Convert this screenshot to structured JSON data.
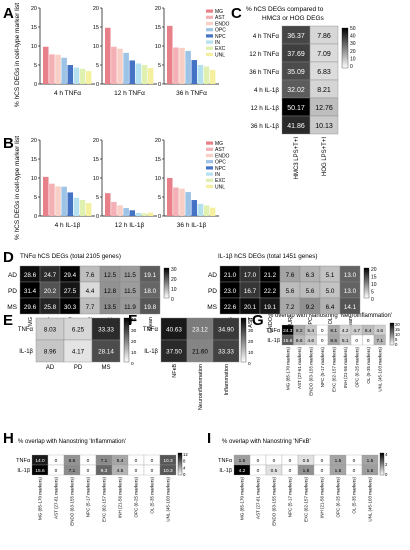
{
  "panels": {
    "A": {
      "letter": "A",
      "ylabel": "% hCS DEGs in cell-type marker list",
      "ylim": [
        0,
        20
      ],
      "ticks": [
        "0",
        "5",
        "10",
        "15",
        "20"
      ],
      "xlabels": [
        "4 h TNFα",
        "12 h TNFα",
        "36 h TNFα"
      ]
    },
    "B": {
      "letter": "B",
      "ylabel": "% hCS DEGs in cell-type marker list",
      "ylim": [
        0,
        20
      ],
      "ticks": [
        "0",
        "5",
        "10",
        "15",
        "20"
      ],
      "xlabels": [
        "4 h IL-1β",
        "12 h IL-1β",
        "36 h IL-1β"
      ]
    },
    "C": {
      "letter": "C",
      "title1": "% hCS DEGs compared to",
      "title2": "HMC3 or HOG DEGs",
      "cols": [
        "HMC3 LPS+T+I",
        "HOG LPS+T+I"
      ],
      "rows": [
        "4 h TNFα",
        "12 h TNFα",
        "36 h TNFα",
        "4 h IL-1β",
        "12 h IL-1β",
        "36 h IL-1β"
      ],
      "cells": [
        [
          "36.37",
          "7.86"
        ],
        [
          "37.69",
          "7.09"
        ],
        [
          "35.09",
          "6.83"
        ],
        [
          "32.02",
          "8.21"
        ],
        [
          "50.17",
          "12.76"
        ],
        [
          "41.86",
          "10.13"
        ]
      ],
      "scale": [
        "50",
        "40",
        "30",
        "20",
        "10",
        "0"
      ]
    },
    "D": {
      "letter": "D",
      "title_left": "TNFα hCS DEGs (total 2105 genes)",
      "title_right": "IL-1β hCS DEGs (total 1451 genes)",
      "rows": [
        "AD",
        "PD",
        "MS"
      ],
      "cols": [
        "MG",
        "AST",
        "ENDO",
        "NEUR",
        "OPC",
        "OL",
        "Mean"
      ],
      "left_cells": [
        [
          "28.6",
          "24.7",
          "29.4",
          "7.6",
          "12.5",
          "11.5",
          "19.1"
        ],
        [
          "31.4",
          "20.2",
          "27.5",
          "4.4",
          "12.8",
          "11.5",
          "18.0"
        ],
        [
          "29.6",
          "25.8",
          "30.3",
          "7.7",
          "13.5",
          "11.9",
          "19.8"
        ]
      ],
      "right_cells": [
        [
          "21.0",
          "17.0",
          "21.2",
          "7.6",
          "6.3",
          "5.1",
          "13.0"
        ],
        [
          "23.0",
          "16.7",
          "22.2",
          "5.6",
          "5.6",
          "5.0",
          "13.0"
        ],
        [
          "22.6",
          "20.1",
          "19.1",
          "7.2",
          "9.2",
          "6.4",
          "14.1"
        ]
      ],
      "scale_left": [
        "30",
        "20",
        "10",
        "0"
      ],
      "scale_right": [
        "20",
        "15",
        "10",
        "5",
        "0"
      ]
    },
    "E": {
      "letter": "E",
      "rows": [
        "TNFα",
        "IL-1β"
      ],
      "cols": [
        "AD",
        "PD",
        "MS"
      ],
      "cells": [
        [
          "8.03",
          "6.25",
          "33.33"
        ],
        [
          "8.96",
          "4.17",
          "28.14"
        ]
      ],
      "scale": [
        "40",
        "30",
        "20",
        "10",
        "0"
      ]
    },
    "F": {
      "letter": "F",
      "rows": [
        "TNFα",
        "IL-1β"
      ],
      "cols": [
        "NFκB",
        "Neuroinflammation",
        "Inflammation"
      ],
      "cells": [
        [
          "40.63",
          "23.12",
          "34.90"
        ],
        [
          "37.50",
          "21.60",
          "33.33"
        ]
      ],
      "scale": [
        "40",
        "30",
        "20",
        "10",
        "0"
      ]
    },
    "G": {
      "letter": "G",
      "title": "% overlap with Nanostring 'Neuroinflammation'",
      "rows": [
        "TNFα",
        "IL-1β"
      ],
      "cols": [
        "MG (85-170 markers)",
        "AST (27-61 markers)",
        "ENDO (63-155 markers)",
        "NPC (5-17 markers)",
        "EXC (62-157 markers)",
        "INH (21-56 markers)",
        "OPC (6-25 markers)",
        "OL (5-35 markers)",
        "UNL (45-103 markers)"
      ],
      "cells": [
        [
          "24.3",
          "8.2",
          "5.4",
          "0",
          "8.1",
          "4.2",
          "4.7",
          "6.4",
          "4.6"
        ],
        [
          "15.6",
          "6.6",
          "4.6",
          "0",
          "8.6",
          "5.1",
          "0",
          "0",
          "7.1"
        ]
      ],
      "scale": [
        "20",
        "15",
        "10",
        "5",
        "0"
      ]
    },
    "H": {
      "letter": "H",
      "title": "% overlap with Nanostring 'Inflammation'",
      "rows": [
        "TNFα",
        "IL-1β"
      ],
      "cols": [
        "MG (85-170 markers)",
        "AST (27-61 markers)",
        "ENDO (63-155 markers)",
        "NPC (5-17 markers)",
        "EXC (62-157 markers)",
        "INH (21-56 markers)",
        "OPC (6-25 markers)",
        "OL (5-35 markers)",
        "UNL (45-103 markers)"
      ],
      "cells": [
        [
          "14.0",
          "0",
          "6.6",
          "0",
          "7.1",
          "5.4",
          "0",
          "0",
          "10.3"
        ],
        [
          "15.6",
          "0",
          "7.1",
          "0",
          "9.3",
          "4.5",
          "0",
          "0",
          "10.3"
        ]
      ],
      "scale": [
        "12",
        "8",
        "4",
        "0"
      ]
    },
    "I": {
      "letter": "I",
      "title": "% overlap with Nanostring 'NFκB'",
      "rows": [
        "TNFα",
        "IL-1β"
      ],
      "cols": [
        "MG (85-170 markers)",
        "AST (27-61 markers)",
        "ENDO (63-155 markers)",
        "NPC (5-17 markers)",
        "EXC (62-157 markers)",
        "INH (21-56 markers)",
        "OPC (6-25 markers)",
        "OL (5-35 markers)",
        "UNL (45-103 markers)"
      ],
      "cells": [
        [
          "1.6",
          "0",
          "0",
          "0",
          "0.5",
          "0",
          "1.5",
          "0",
          "1.5"
        ],
        [
          "4.2",
          "0",
          "0.5",
          "0",
          "1.8",
          "0",
          "1.5",
          "0",
          "1.6"
        ]
      ],
      "scale": [
        "4",
        "2",
        "0"
      ]
    }
  },
  "legend": [
    "MG",
    "AST",
    "ENDO",
    "OPC",
    "NPC",
    "IN",
    "EXC",
    "UNL"
  ],
  "colors": {
    "MG": "#e8808a",
    "AST": "#f3b0b5",
    "ENDO": "#f7cfc5",
    "OPC": "#9dc3e6",
    "NPC": "#4472c4",
    "IN": "#b4e0f0",
    "EXC": "#dff0b0",
    "UNL": "#f4f0a0"
  },
  "chart_data": [
    {
      "type": "bar",
      "panel": "A",
      "categories": [
        "4 h TNFα",
        "12 h TNFα",
        "36 h TNFα"
      ],
      "ylim": [
        0,
        20
      ],
      "series": [
        {
          "name": "MG",
          "values": [
            9.8,
            14.8,
            15.3
          ]
        },
        {
          "name": "AST",
          "values": [
            7.8,
            9.8,
            9.6
          ]
        },
        {
          "name": "ENDO",
          "values": [
            7.7,
            9.3,
            9.5
          ]
        },
        {
          "name": "OPC",
          "values": [
            6.9,
            8.2,
            8.7
          ]
        },
        {
          "name": "NPC",
          "values": [
            5.0,
            6.2,
            6.3
          ]
        },
        {
          "name": "IN",
          "values": [
            4.3,
            5.4,
            5.0
          ]
        },
        {
          "name": "EXC",
          "values": [
            4.0,
            5.0,
            4.6
          ]
        },
        {
          "name": "UNL",
          "values": [
            3.4,
            4.2,
            3.7
          ]
        }
      ]
    },
    {
      "type": "bar",
      "panel": "B",
      "categories": [
        "4 h IL-1β",
        "12 h IL-1β",
        "36 h IL-1β"
      ],
      "ylim": [
        0,
        20
      ],
      "series": [
        {
          "name": "MG",
          "values": [
            10.3,
            6.0,
            10.0
          ]
        },
        {
          "name": "AST",
          "values": [
            8.5,
            3.7,
            7.5
          ]
        },
        {
          "name": "ENDO",
          "values": [
            7.8,
            2.8,
            7.2
          ]
        },
        {
          "name": "OPC",
          "values": [
            7.7,
            2.1,
            6.3
          ]
        },
        {
          "name": "NPC",
          "values": [
            6.2,
            1.5,
            4.2
          ]
        },
        {
          "name": "IN",
          "values": [
            4.8,
            0.8,
            3.2
          ]
        },
        {
          "name": "EXC",
          "values": [
            4.2,
            0.7,
            2.8
          ]
        },
        {
          "name": "UNL",
          "values": [
            3.4,
            0.9,
            2.2
          ]
        }
      ]
    }
  ]
}
